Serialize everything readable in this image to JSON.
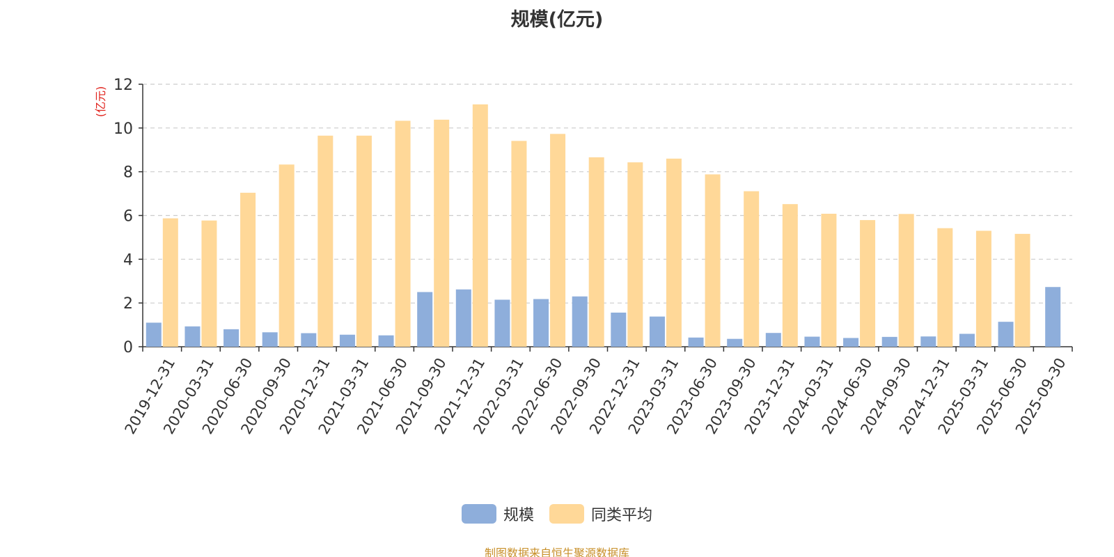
{
  "title": "规模(亿元)",
  "source_note": "制图数据来自恒生聚源数据库",
  "colors": {
    "series1": "#8eaedb",
    "series2": "#ffd898",
    "axis": "#333333",
    "grid": "#cccccc",
    "ylabel": "#e0201a",
    "tick_text": "#333333"
  },
  "chart_data": {
    "type": "bar",
    "title": "规模(亿元)",
    "ylabel": "(亿元)",
    "xlabel": "",
    "ylim": [
      0,
      12
    ],
    "yticks": [
      0,
      2,
      4,
      6,
      8,
      10,
      12
    ],
    "grid": true,
    "legend_position": "bottom-center",
    "categories": [
      "2019-12-31",
      "2020-03-31",
      "2020-06-30",
      "2020-09-30",
      "2020-12-31",
      "2021-03-31",
      "2021-06-30",
      "2021-09-30",
      "2021-12-31",
      "2022-03-31",
      "2022-06-30",
      "2022-09-30",
      "2022-12-31",
      "2023-03-31",
      "2023-06-30",
      "2023-09-30",
      "2023-12-31",
      "2024-03-31",
      "2024-06-30",
      "2024-09-30",
      "2024-12-31",
      "2025-03-31",
      "2025-06-30",
      "2025-09-30"
    ],
    "series": [
      {
        "name": "规模",
        "values": [
          1.1,
          0.93,
          0.8,
          0.66,
          0.62,
          0.55,
          0.52,
          2.5,
          2.62,
          2.15,
          2.18,
          2.3,
          1.56,
          1.38,
          0.42,
          0.36,
          0.63,
          0.46,
          0.4,
          0.45,
          0.47,
          0.59,
          1.14,
          2.73
        ]
      },
      {
        "name": "同类平均",
        "values": [
          5.87,
          5.77,
          7.04,
          8.33,
          9.65,
          9.65,
          10.33,
          10.38,
          11.08,
          9.41,
          9.73,
          8.66,
          8.43,
          8.6,
          7.88,
          7.11,
          6.52,
          6.08,
          5.79,
          6.07,
          5.42,
          5.3,
          5.16,
          null
        ]
      }
    ]
  }
}
